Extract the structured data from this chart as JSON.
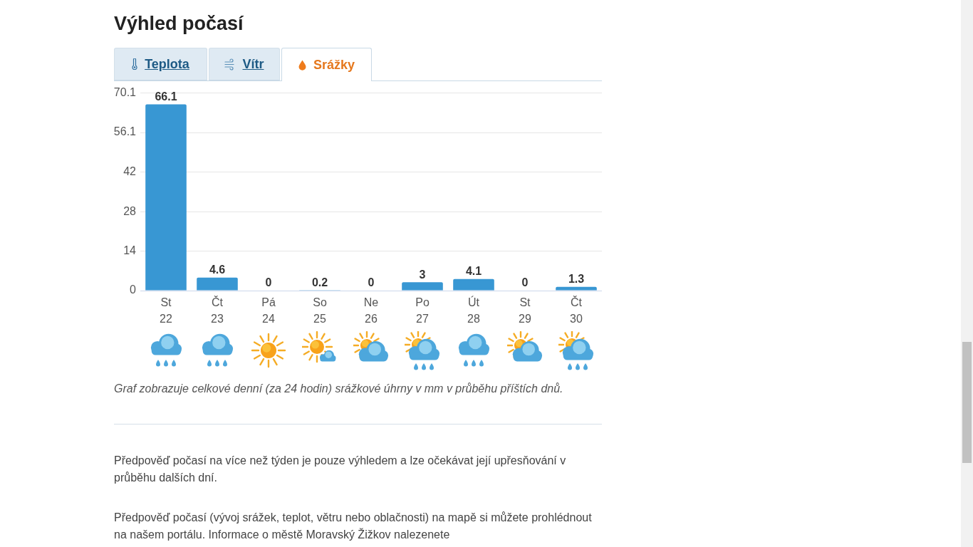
{
  "chart_data": {
    "type": "bar",
    "title": "Výhled počasí",
    "categories": [
      "St 22",
      "Čt 23",
      "Pá 24",
      "So 25",
      "Ne 26",
      "Po 27",
      "Út 28",
      "St 29",
      "Čt 30"
    ],
    "values": [
      66.1,
      4.6,
      0,
      0.2,
      0,
      3,
      4.1,
      0,
      1.3
    ],
    "color": "#3897d3",
    "ylim": [
      0,
      70.1
    ],
    "yticks": [
      0,
      14,
      28,
      42,
      56.1,
      70.1
    ],
    "grid": "y",
    "data_labels": true,
    "annotations": [
      "Teplota",
      "Vítr",
      "Srážky",
      "Graf zobrazuje celkové denní (za 24 hodin) srážkové úhrny v mm v průběhu příštích dnů.",
      "Předpověď počasí na více než týden je pouze výhledem a lze očekávat její upřesňování v průběhu dalších dní.",
      "Předpověď počasí (vývoj srážek, teplot, větru nebo oblačnosti) na mapě si můžete prohlédnout na našem portálu. Informace o městě Moravský Žižkov nalezenete"
    ]
  }
}
